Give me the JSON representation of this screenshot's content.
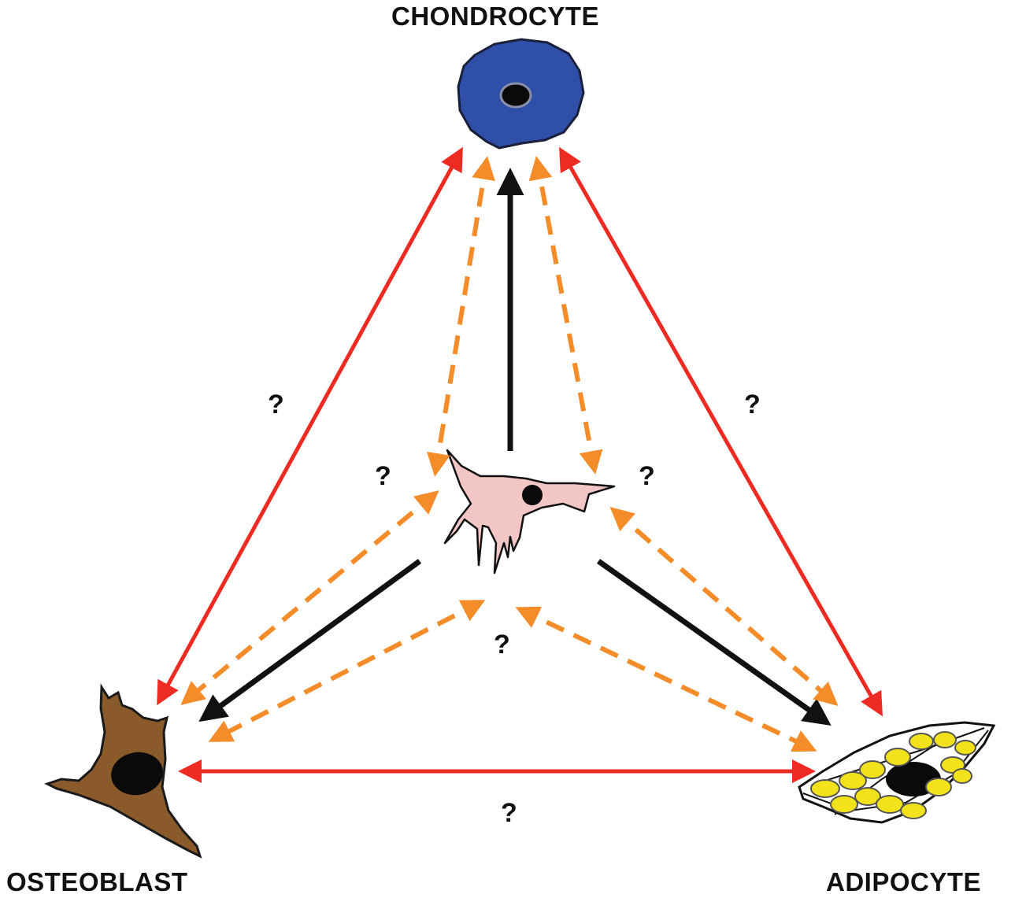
{
  "labels": {
    "chondrocyte": "CHONDROCYTE",
    "osteoblast": "OSTEOBLAST",
    "adipocyte": "ADIPOCYTE"
  },
  "question_mark": "?",
  "colors": {
    "transdifferentiation_arrow": "#ee2b22",
    "dedifferentiation_arrow": "#f48c2a",
    "differentiation_arrow": "#111111",
    "chondrocyte_fill": "#2f4fa8",
    "osteoblast_fill": "#8a5a2b",
    "stem_cell_fill": "#f2c6c4",
    "lipid_droplet": "#f2e21a"
  }
}
